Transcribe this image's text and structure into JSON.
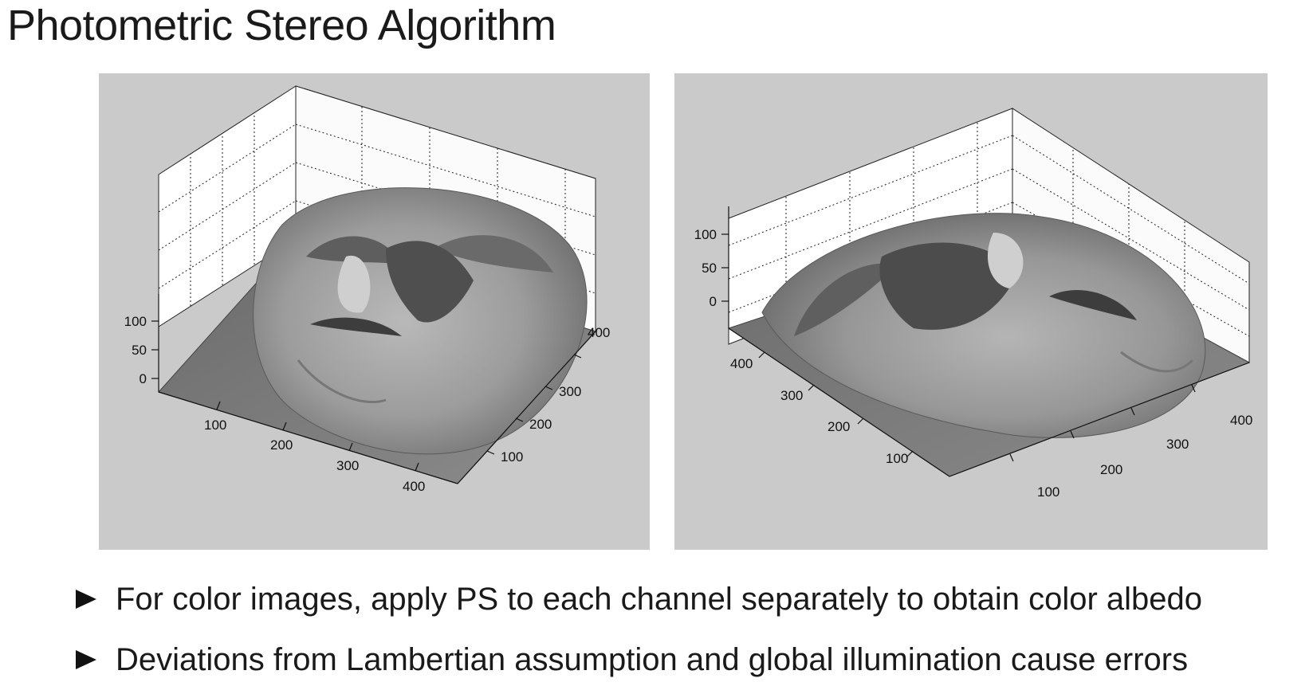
{
  "slide": {
    "title": "Photometric Stereo Algorithm",
    "bullets": [
      "For color images, apply PS to each channel separately to obtain color albedo",
      "Deviations from Lambertian assumption and global illumination cause errors"
    ]
  },
  "figures": [
    {
      "z_ticks": [
        "100",
        "50",
        "0"
      ],
      "x_ticks": [
        "100",
        "200",
        "300",
        "400"
      ],
      "y_ticks": [
        "100",
        "200",
        "300",
        "400"
      ]
    },
    {
      "z_ticks": [
        "100",
        "50",
        "0"
      ],
      "x_ticks": [
        "100",
        "200",
        "300",
        "400"
      ],
      "y_ticks": [
        "100",
        "200",
        "300",
        "400"
      ]
    }
  ]
}
